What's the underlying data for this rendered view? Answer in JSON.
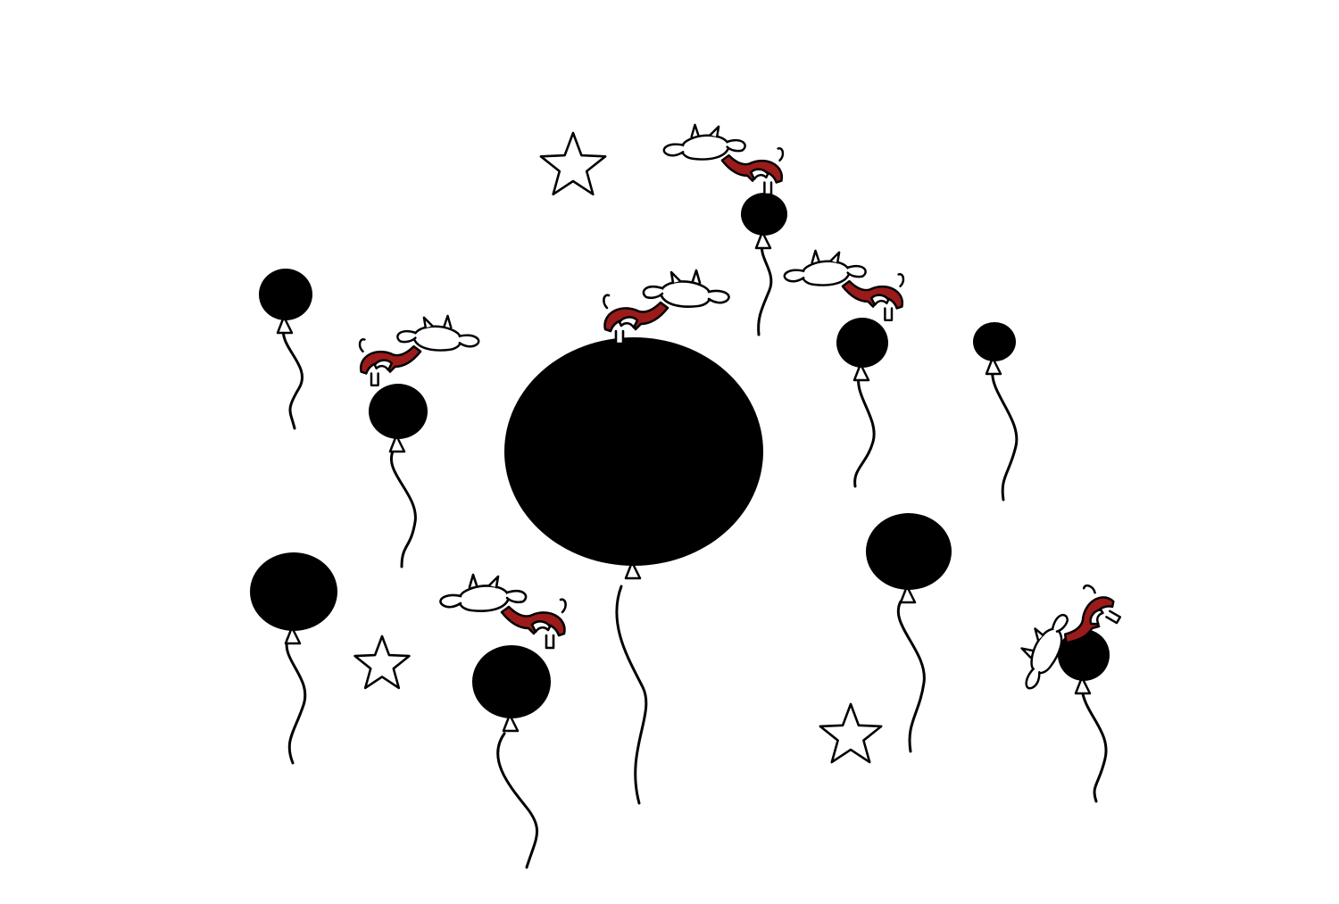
{
  "scene": {
    "background_color": "#ffffff",
    "ink_color": "#000000",
    "accent_color": "#9b1b1b",
    "star_fill": "#ffffff"
  },
  "balloons": [
    {
      "id": "large-center",
      "has_rider": true
    },
    {
      "id": "left-top",
      "has_rider": false
    },
    {
      "id": "left-with-rider",
      "has_rider": true
    },
    {
      "id": "left-bottom",
      "has_rider": false
    },
    {
      "id": "lower-middle-with-rider",
      "has_rider": true
    },
    {
      "id": "top-right-with-rider",
      "has_rider": true
    },
    {
      "id": "right-with-rider",
      "has_rider": true
    },
    {
      "id": "right-small",
      "has_rider": false
    },
    {
      "id": "right-lower",
      "has_rider": false
    },
    {
      "id": "far-right-with-rider",
      "has_rider": true
    }
  ],
  "riders": [
    {
      "id": "rider-large-center",
      "type": "cow",
      "icon": "cow-icon"
    },
    {
      "id": "rider-left",
      "type": "cow",
      "icon": "cow-icon"
    },
    {
      "id": "rider-lower-middle",
      "type": "cow",
      "icon": "cow-icon"
    },
    {
      "id": "rider-top-right",
      "type": "cow",
      "icon": "cow-icon"
    },
    {
      "id": "rider-right",
      "type": "cow",
      "icon": "cow-icon"
    },
    {
      "id": "rider-far-right",
      "type": "cow",
      "icon": "cow-icon"
    }
  ],
  "stars": [
    {
      "id": "star-top",
      "icon": "star-icon"
    },
    {
      "id": "star-bottom-left",
      "icon": "star-icon"
    },
    {
      "id": "star-bottom-right",
      "icon": "star-icon"
    }
  ]
}
